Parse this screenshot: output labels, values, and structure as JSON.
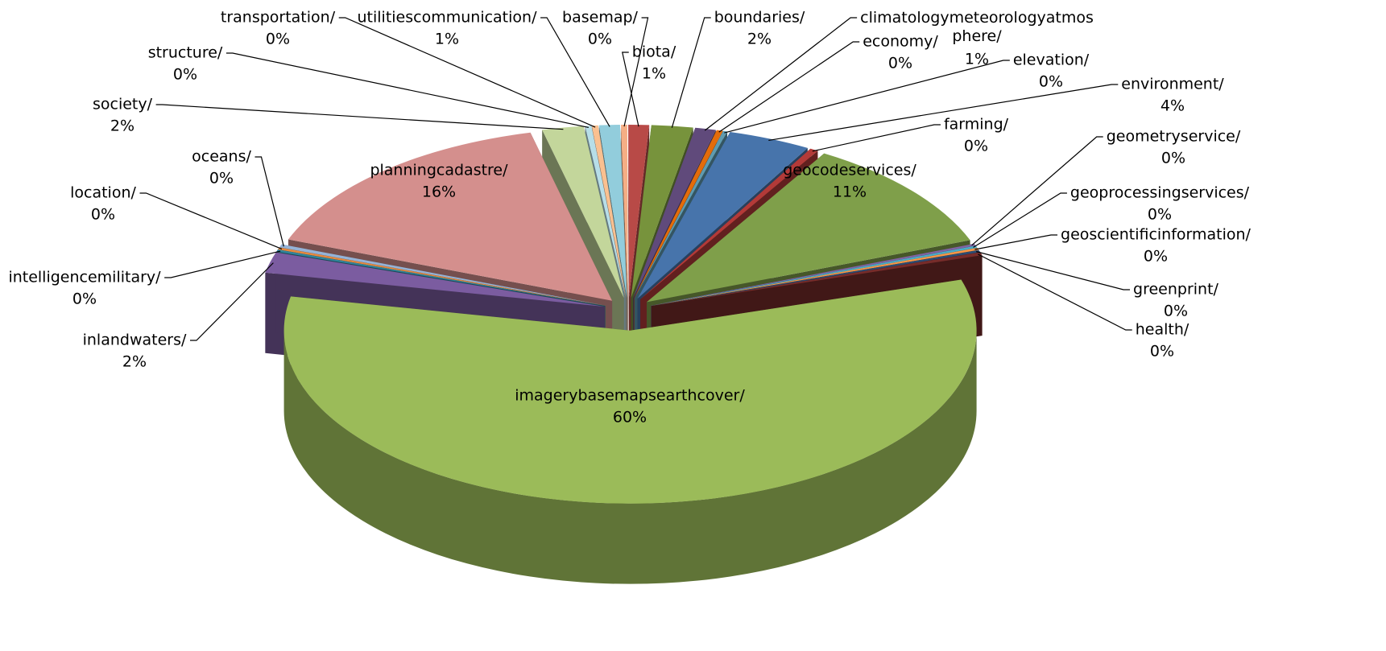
{
  "chart_data": {
    "type": "pie3d",
    "categories": [
      "basemap/",
      "biota/",
      "boundaries/",
      "climatologymeteorologyatmosphere/",
      "economy/",
      "elevation/",
      "environment/",
      "farming/",
      "geocodeservices/",
      "geometryservice/",
      "geoprocessingservices/",
      "geoscientificinformation/",
      "greenprint/",
      "health/",
      "imagerybasemapsearthcover/",
      "inlandwaters/",
      "intelligencemilitary/",
      "location/",
      "oceans/",
      "planningcadastre/",
      "society/",
      "structure/",
      "transportation/",
      "utilitiescommunication/"
    ],
    "values": [
      0.3,
      1,
      2,
      1,
      0.3,
      0.2,
      4,
      0.4,
      11,
      0.2,
      0.2,
      0.2,
      0.2,
      0.3,
      60,
      2,
      0.2,
      0.2,
      0.3,
      16,
      2,
      0.3,
      0.3,
      1
    ],
    "value_labels": [
      "0%",
      "1%",
      "2%",
      "1%",
      "0%",
      "0%",
      "4%",
      "0%",
      "11%",
      "0%",
      "0%",
      "0%",
      "0%",
      "0%",
      "60%",
      "2%",
      "0%",
      "0%",
      "0%",
      "16%",
      "2%",
      "0%",
      "0%",
      "1%"
    ],
    "colors": [
      "#f5ae85",
      "#b84a47",
      "#77933c",
      "#604a7b",
      "#e46c0a",
      "#5f9bb0",
      "#4774ab",
      "#b33a38",
      "#7f9f4a",
      "#8064a2",
      "#4bacc6",
      "#f79646",
      "#2c4d75",
      "#772c2a",
      "#9bbb59",
      "#7b5ca0",
      "#31859c",
      "#e8893e",
      "#95b3d7",
      "#d48f8d",
      "#c3d69b",
      "#b7dee8",
      "#fac090",
      "#92cddc"
    ]
  }
}
